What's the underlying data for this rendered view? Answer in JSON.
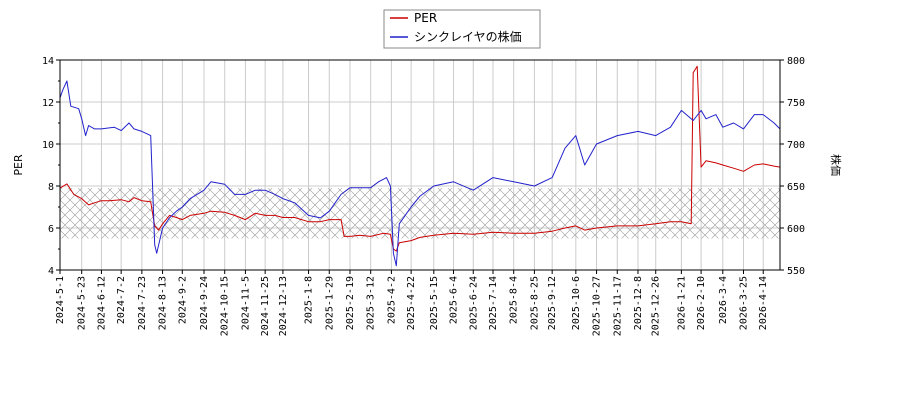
{
  "chart_data": {
    "type": "line",
    "legend": {
      "placement": "top-center",
      "entries": [
        "PER",
        "シンクレイヤの株価"
      ]
    },
    "colors": {
      "per": "#cc0000",
      "price": "#2222cc",
      "grid": "#cccccc",
      "band": "#999999"
    },
    "y_left": {
      "label": "PER",
      "lim": [
        4,
        14
      ],
      "ticks": [
        "4",
        "6",
        "8",
        "10",
        "12",
        "14"
      ]
    },
    "y_right": {
      "label": "株価",
      "lim": [
        550,
        800
      ],
      "ticks": [
        "550",
        "600",
        "650",
        "700",
        "750",
        "800"
      ]
    },
    "x": {
      "start": "2024-5-1",
      "end": "2026-5-1",
      "tick_labels": [
        "2024-5-1",
        "2024-5-23",
        "2024-6-12",
        "2024-7-2",
        "2024-7-23",
        "2024-8-13",
        "2024-9-2",
        "2024-9-24",
        "2024-10-15",
        "2024-11-5",
        "2024-11-25",
        "2024-12-13",
        "2025-1-8",
        "2025-1-29",
        "2025-2-19",
        "2025-3-12",
        "2025-4-2",
        "2025-4-22",
        "2025-5-15",
        "2025-6-4",
        "2025-6-24",
        "2025-7-14",
        "2025-8-4",
        "2025-8-25",
        "2025-9-12",
        "2025-10-6",
        "2025-10-27",
        "2025-11-17",
        "2025-12-8",
        "2025-12-26",
        "2026-1-21",
        "2026-2-10",
        "2026-3-4",
        "2026-3-25",
        "2026-4-14"
      ]
    },
    "per_band": [
      5.5,
      7.9
    ],
    "grid": true,
    "series": [
      {
        "name": "PER",
        "axis": "left",
        "points": [
          [
            "2024-5-1",
            7.9
          ],
          [
            "2024-5-8",
            8.1
          ],
          [
            "2024-5-15",
            7.6
          ],
          [
            "2024-5-23",
            7.4
          ],
          [
            "2024-5-30",
            7.1
          ],
          [
            "2024-6-5",
            7.2
          ],
          [
            "2024-6-12",
            7.3
          ],
          [
            "2024-6-20",
            7.3
          ],
          [
            "2024-7-2",
            7.35
          ],
          [
            "2024-7-10",
            7.25
          ],
          [
            "2024-7-15",
            7.45
          ],
          [
            "2024-7-23",
            7.3
          ],
          [
            "2024-8-1",
            7.25
          ],
          [
            "2024-8-5",
            6.1
          ],
          [
            "2024-8-9",
            5.9
          ],
          [
            "2024-8-13",
            6.2
          ],
          [
            "2024-8-20",
            6.6
          ],
          [
            "2024-8-27",
            6.5
          ],
          [
            "2024-9-2",
            6.4
          ],
          [
            "2024-9-10",
            6.6
          ],
          [
            "2024-9-24",
            6.7
          ],
          [
            "2024-10-1",
            6.8
          ],
          [
            "2024-10-15",
            6.75
          ],
          [
            "2024-10-25",
            6.6
          ],
          [
            "2024-11-5",
            6.4
          ],
          [
            "2024-11-15",
            6.7
          ],
          [
            "2024-11-25",
            6.6
          ],
          [
            "2024-12-5",
            6.6
          ],
          [
            "2024-12-13",
            6.5
          ],
          [
            "2024-12-25",
            6.5
          ],
          [
            "2025-1-8",
            6.3
          ],
          [
            "2025-1-20",
            6.3
          ],
          [
            "2025-1-29",
            6.4
          ],
          [
            "2025-2-10",
            6.4
          ],
          [
            "2025-2-13",
            5.6
          ],
          [
            "2025-2-19",
            5.6
          ],
          [
            "2025-3-1",
            5.65
          ],
          [
            "2025-3-12",
            5.6
          ],
          [
            "2025-3-25",
            5.75
          ],
          [
            "2025-4-1",
            5.7
          ],
          [
            "2025-4-4",
            5.0
          ],
          [
            "2025-4-7",
            4.9
          ],
          [
            "2025-4-10",
            5.3
          ],
          [
            "2025-4-22",
            5.4
          ],
          [
            "2025-5-1",
            5.55
          ],
          [
            "2025-5-15",
            5.65
          ],
          [
            "2025-6-4",
            5.75
          ],
          [
            "2025-6-24",
            5.7
          ],
          [
            "2025-7-14",
            5.8
          ],
          [
            "2025-8-4",
            5.75
          ],
          [
            "2025-8-25",
            5.75
          ],
          [
            "2025-9-12",
            5.85
          ],
          [
            "2025-9-25",
            6.0
          ],
          [
            "2025-10-6",
            6.1
          ],
          [
            "2025-10-15",
            5.9
          ],
          [
            "2025-10-27",
            6.0
          ],
          [
            "2025-11-17",
            6.1
          ],
          [
            "2025-12-8",
            6.1
          ],
          [
            "2025-12-26",
            6.2
          ],
          [
            "2026-1-10",
            6.3
          ],
          [
            "2026-1-21",
            6.3
          ],
          [
            "2026-1-31",
            6.2
          ],
          [
            "2026-2-2",
            13.4
          ],
          [
            "2026-2-6",
            13.7
          ],
          [
            "2026-2-10",
            8.9
          ],
          [
            "2026-2-15",
            9.2
          ],
          [
            "2026-2-25",
            9.1
          ],
          [
            "2026-3-4",
            9.0
          ],
          [
            "2026-3-15",
            8.85
          ],
          [
            "2026-3-25",
            8.7
          ],
          [
            "2026-4-5",
            9.0
          ],
          [
            "2026-4-14",
            9.05
          ],
          [
            "2026-4-25",
            8.95
          ],
          [
            "2026-5-1",
            8.9
          ]
        ]
      },
      {
        "name": "シンクレイヤの株価",
        "axis": "right",
        "points": [
          [
            "2024-5-1",
            755
          ],
          [
            "2024-5-4",
            765
          ],
          [
            "2024-5-8",
            775
          ],
          [
            "2024-5-12",
            745
          ],
          [
            "2024-5-20",
            742
          ],
          [
            "2024-5-23",
            730
          ],
          [
            "2024-5-27",
            710
          ],
          [
            "2024-5-30",
            722
          ],
          [
            "2024-6-5",
            718
          ],
          [
            "2024-6-12",
            718
          ],
          [
            "2024-6-25",
            720
          ],
          [
            "2024-7-2",
            716
          ],
          [
            "2024-7-10",
            725
          ],
          [
            "2024-7-15",
            718
          ],
          [
            "2024-7-23",
            715
          ],
          [
            "2024-8-1",
            710
          ],
          [
            "2024-8-5",
            580
          ],
          [
            "2024-8-7",
            570
          ],
          [
            "2024-8-13",
            600
          ],
          [
            "2024-8-20",
            612
          ],
          [
            "2024-8-27",
            620
          ],
          [
            "2024-9-2",
            625
          ],
          [
            "2024-9-10",
            635
          ],
          [
            "2024-9-24",
            645
          ],
          [
            "2024-10-1",
            655
          ],
          [
            "2024-10-15",
            652
          ],
          [
            "2024-10-25",
            640
          ],
          [
            "2024-11-5",
            640
          ],
          [
            "2024-11-15",
            645
          ],
          [
            "2024-11-25",
            645
          ],
          [
            "2024-12-5",
            640
          ],
          [
            "2024-12-13",
            635
          ],
          [
            "2024-12-25",
            630
          ],
          [
            "2025-1-8",
            615
          ],
          [
            "2025-1-20",
            612
          ],
          [
            "2025-1-29",
            620
          ],
          [
            "2025-2-10",
            640
          ],
          [
            "2025-2-19",
            648
          ],
          [
            "2025-3-1",
            648
          ],
          [
            "2025-3-12",
            648
          ],
          [
            "2025-3-20",
            655
          ],
          [
            "2025-3-28",
            660
          ],
          [
            "2025-4-1",
            650
          ],
          [
            "2025-4-4",
            570
          ],
          [
            "2025-4-7",
            555
          ],
          [
            "2025-4-10",
            605
          ],
          [
            "2025-4-22",
            625
          ],
          [
            "2025-5-1",
            638
          ],
          [
            "2025-5-15",
            650
          ],
          [
            "2025-6-4",
            655
          ],
          [
            "2025-6-24",
            645
          ],
          [
            "2025-7-14",
            660
          ],
          [
            "2025-8-4",
            655
          ],
          [
            "2025-8-25",
            650
          ],
          [
            "2025-9-12",
            660
          ],
          [
            "2025-9-25",
            695
          ],
          [
            "2025-10-6",
            710
          ],
          [
            "2025-10-15",
            675
          ],
          [
            "2025-10-27",
            700
          ],
          [
            "2025-11-17",
            710
          ],
          [
            "2025-12-8",
            715
          ],
          [
            "2025-12-26",
            710
          ],
          [
            "2026-1-10",
            720
          ],
          [
            "2026-1-21",
            740
          ],
          [
            "2026-2-2",
            728
          ],
          [
            "2026-2-10",
            740
          ],
          [
            "2026-2-15",
            730
          ],
          [
            "2026-2-25",
            735
          ],
          [
            "2026-3-4",
            720
          ],
          [
            "2026-3-15",
            725
          ],
          [
            "2026-3-25",
            718
          ],
          [
            "2026-4-5",
            735
          ],
          [
            "2026-4-14",
            735
          ],
          [
            "2026-4-25",
            725
          ],
          [
            "2026-5-1",
            718
          ]
        ]
      }
    ]
  }
}
